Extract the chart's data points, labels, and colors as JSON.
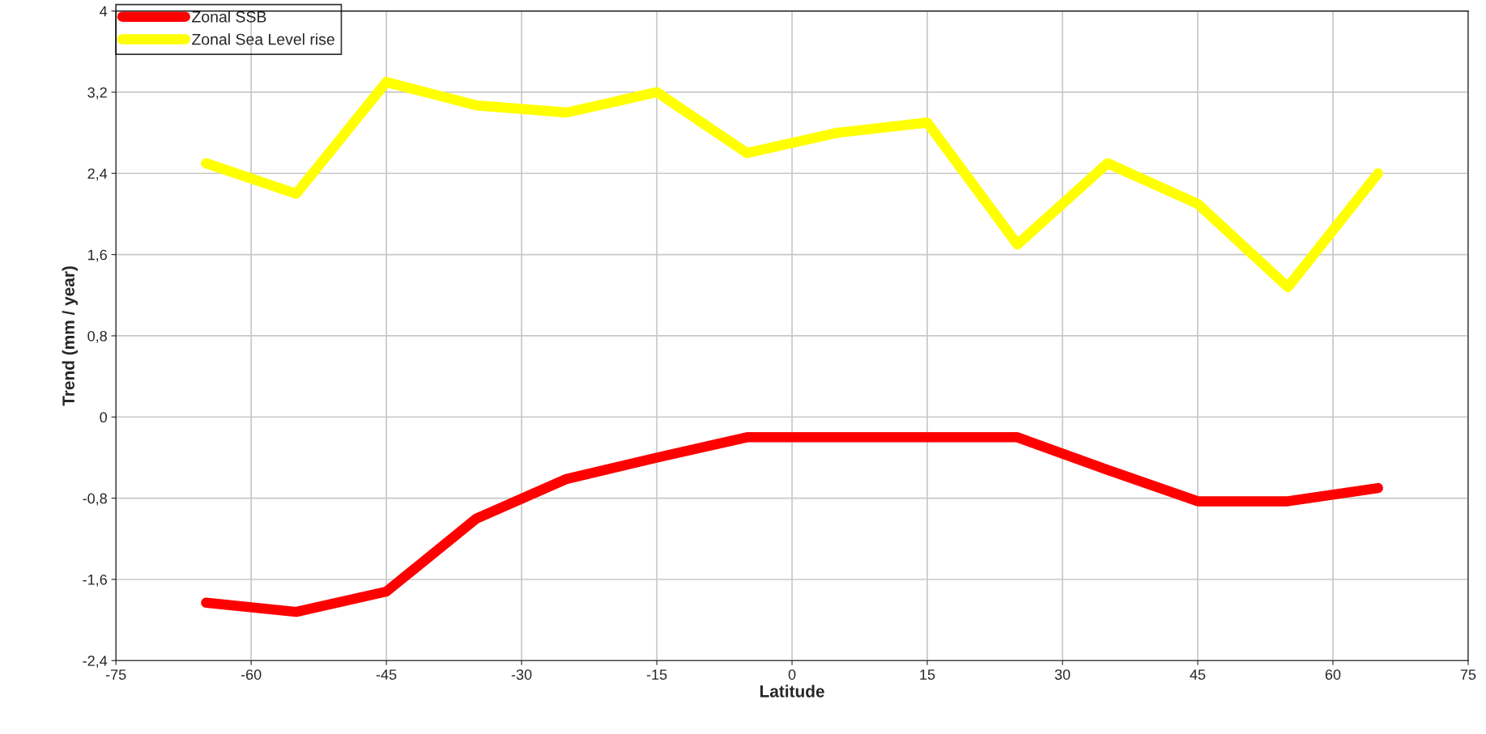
{
  "chart_data": {
    "type": "line",
    "xlabel": "Latitude",
    "ylabel": "Trend (mm / year)",
    "x": [
      -65,
      -55,
      -45,
      -35,
      -25,
      -15,
      -5,
      5,
      15,
      25,
      35,
      45,
      55,
      65
    ],
    "series": [
      {
        "name": "Zonal SSB",
        "color": "#ff0000",
        "values": [
          -1.83,
          -1.92,
          -1.72,
          -1.0,
          -0.61,
          -0.4,
          -0.2,
          -0.2,
          -0.2,
          -0.2,
          -0.52,
          -0.83,
          -0.83,
          -0.7
        ]
      },
      {
        "name": "Zonal Sea Level rise",
        "color": "#ffff00",
        "values": [
          2.5,
          2.2,
          3.3,
          3.07,
          3.0,
          3.2,
          2.6,
          2.8,
          2.9,
          1.7,
          2.5,
          2.1,
          1.28,
          2.4
        ]
      }
    ],
    "xlim": [
      -75,
      75
    ],
    "xticks": [
      -75,
      -60,
      -45,
      -30,
      -15,
      0,
      15,
      30,
      45,
      60,
      75
    ],
    "ylim": [
      -2.4,
      4
    ],
    "yticks": [
      {
        "value": -2.4,
        "label": "-2,4"
      },
      {
        "value": -1.6,
        "label": "-1,6"
      },
      {
        "value": -0.8,
        "label": "-0,8"
      },
      0,
      {
        "value": 0.8,
        "label": "0,8"
      },
      {
        "value": 1.6,
        "label": "1,6"
      },
      {
        "value": 2.4,
        "label": "2,4"
      },
      {
        "value": 3.2,
        "label": "3,2"
      },
      4
    ],
    "grid": true,
    "legend": "top left",
    "marker": "none",
    "line_style": "solid"
  }
}
